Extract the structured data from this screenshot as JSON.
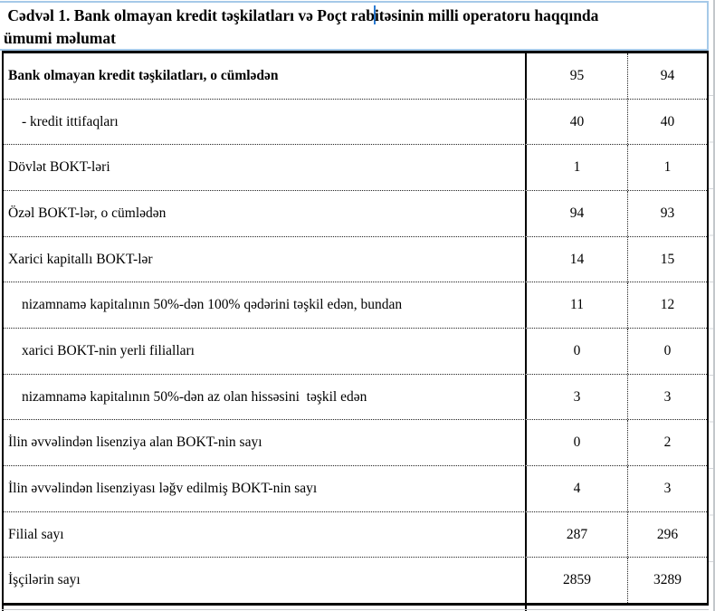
{
  "title": {
    "before_cursor": " Cədvəl 1. Bank olmayan kredit təşkilatları və Poçt rab",
    "after_cursor": "itəsinin milli operatoru haqqında",
    "line2": "ümumi məlumat"
  },
  "table": {
    "rows": [
      {
        "label": "Bank olmayan kredit təşkilatları, o cümlədən",
        "v1": "95",
        "v2": "94"
      },
      {
        "label": "- kredit ittifaqları",
        "v1": "40",
        "v2": "40"
      },
      {
        "label": "Dövlət BOKT-ləri",
        "v1": "1",
        "v2": "1"
      },
      {
        "label": "Özəl BOKT-lər, o cümlədən",
        "v1": "94",
        "v2": "93"
      },
      {
        "label": "Xarici kapitallı BOKT-lər",
        "v1": "14",
        "v2": "15"
      },
      {
        "label": "nizamnamə kapitalının 50%-dən 100% qədərini təşkil edən, bundan",
        "v1": "11",
        "v2": "12"
      },
      {
        "label": "xarici BOKT-nin yerli filialları",
        "v1": "0",
        "v2": "0"
      },
      {
        "label": "nizamnamə kapitalının 50%-dən az olan hissəsini  təşkil edən",
        "v1": "3",
        "v2": "3"
      },
      {
        "label": "İlin əvvəlindən lisenziya alan BOKT-nin sayı",
        "v1": "0",
        "v2": "2"
      },
      {
        "label": "İlin əvvəlindən lisenziyası ləğv edilmiş BOKT-nin sayı",
        "v1": "4",
        "v2": "3"
      },
      {
        "label": "Filial sayı",
        "v1": "287",
        "v2": "296"
      },
      {
        "label": "İşçilərin sayı",
        "v1": "2859",
        "v2": "3289"
      }
    ]
  },
  "colors": {
    "title_box_border": "#a6c9e8",
    "text_cursor": "#2b7bd2",
    "table_border": "#000000"
  }
}
